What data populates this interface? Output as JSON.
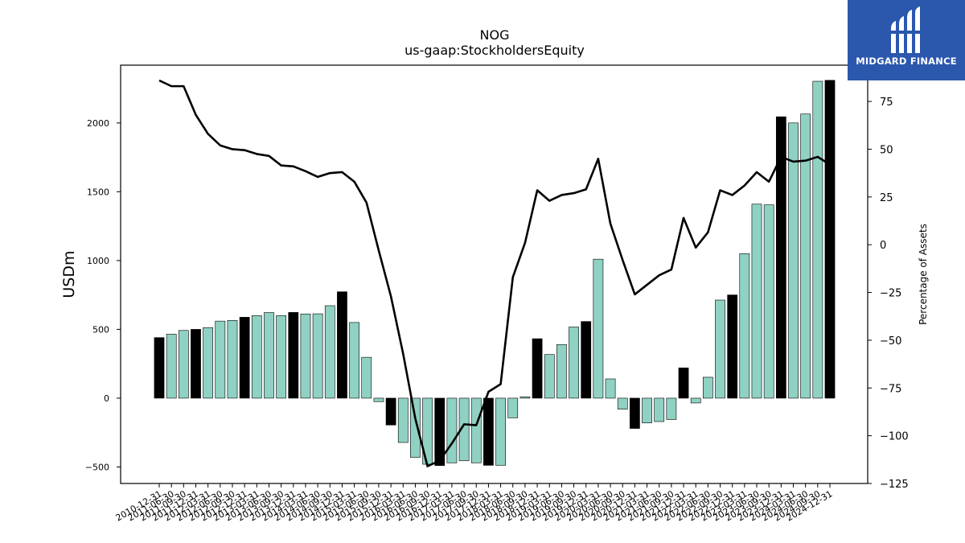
{
  "chart_data": {
    "type": "bar",
    "title": "NOG",
    "subtitle": "us-gaap:StockholdersEquity",
    "ylabel": "USDm",
    "ylabel_right": "Percentage of Assets",
    "ylim": [
      -620,
      2420
    ],
    "ylim_right": [
      -125,
      94
    ],
    "yticks": [
      -500,
      0,
      500,
      1000,
      1500,
      2000
    ],
    "yticks_right": [
      -125,
      -100,
      -75,
      -50,
      -25,
      0,
      25,
      50,
      75
    ],
    "tick_labels": [
      "2010-12-31",
      "2011-06-30",
      "2011-09-30",
      "2011-12-31",
      "2012-03-31",
      "2012-06-30",
      "2012-09-30",
      "2012-12-31",
      "2013-03-31",
      "2013-06-30",
      "2013-09-30",
      "2013-12-31",
      "2014-03-31",
      "2014-06-30",
      "2014-09-30",
      "2014-12-31",
      "2015-03-31",
      "2015-06-30",
      "2015-09-30",
      "2015-12-31",
      "2016-03-31",
      "2016-06-30",
      "2016-09-30",
      "2016-12-31",
      "2017-03-31",
      "2017-06-30",
      "2017-09-30",
      "2017-12-31",
      "2018-03-31",
      "2018-06-30",
      "2018-09-30",
      "2018-12-31",
      "2019-03-31",
      "2019-06-30",
      "2019-09-30",
      "2019-12-31",
      "2020-03-31",
      "2020-06-30",
      "2020-09-30",
      "2020-12-31",
      "2021-03-31",
      "2021-06-30",
      "2021-09-30",
      "2021-12-31",
      "2022-03-31",
      "2022-06-30",
      "2022-09-30",
      "2022-12-31",
      "2023-03-31",
      "2023-06-30",
      "2023-09-30",
      "2023-12-31",
      "2024-03-31",
      "2024-06-30",
      "2024-09-30",
      "2024-12-31"
    ],
    "series": [
      {
        "type": "bar",
        "values": [
          440,
          465,
          492,
          500,
          513,
          560,
          565,
          588,
          600,
          622,
          600,
          623,
          612,
          613,
          672,
          773,
          550,
          297,
          -25,
          -195,
          -322,
          -430,
          -480,
          -490,
          -470,
          -455,
          -470,
          -488,
          -488,
          -143,
          10,
          432,
          317,
          390,
          517,
          557,
          1010,
          140,
          -80,
          -220,
          -180,
          -170,
          -155,
          220,
          -35,
          152,
          713,
          750,
          1050,
          1410,
          1405,
          2045,
          2000,
          2065,
          2303,
          2310
        ],
        "annual_flags": [
          1,
          0,
          0,
          1,
          0,
          0,
          0,
          1,
          0,
          0,
          0,
          1,
          0,
          0,
          0,
          1,
          0,
          0,
          0,
          1,
          0,
          0,
          0,
          1,
          0,
          0,
          0,
          1,
          0,
          0,
          0,
          1,
          0,
          0,
          0,
          1,
          0,
          0,
          0,
          1,
          0,
          0,
          0,
          1,
          0,
          0,
          0,
          1,
          0,
          0,
          0,
          1,
          0,
          0,
          0,
          1
        ],
        "color_quarter": "#8fd1c3",
        "color_annual": "#000000"
      },
      {
        "type": "line",
        "axis": "right",
        "values": [
          86,
          83,
          83,
          68,
          58,
          52,
          50,
          49.5,
          47.5,
          46.5,
          41.5,
          41,
          38.5,
          35.5,
          37.5,
          38,
          33,
          22,
          -3,
          -27,
          -57,
          -91,
          -116,
          -113,
          -104,
          -94,
          -94.5,
          -77,
          -73,
          -17,
          1,
          28.5,
          23,
          26,
          27,
          29,
          45,
          11,
          -8,
          -26,
          -21,
          -16,
          -13,
          14,
          -1.5,
          6.5,
          28.5,
          26,
          31,
          38,
          33,
          46,
          43.5,
          44,
          46,
          42
        ],
        "color": "#000000"
      }
    ]
  },
  "logo": {
    "text": "MIDGARD FINANCE",
    "bg": "#2b57ad"
  }
}
